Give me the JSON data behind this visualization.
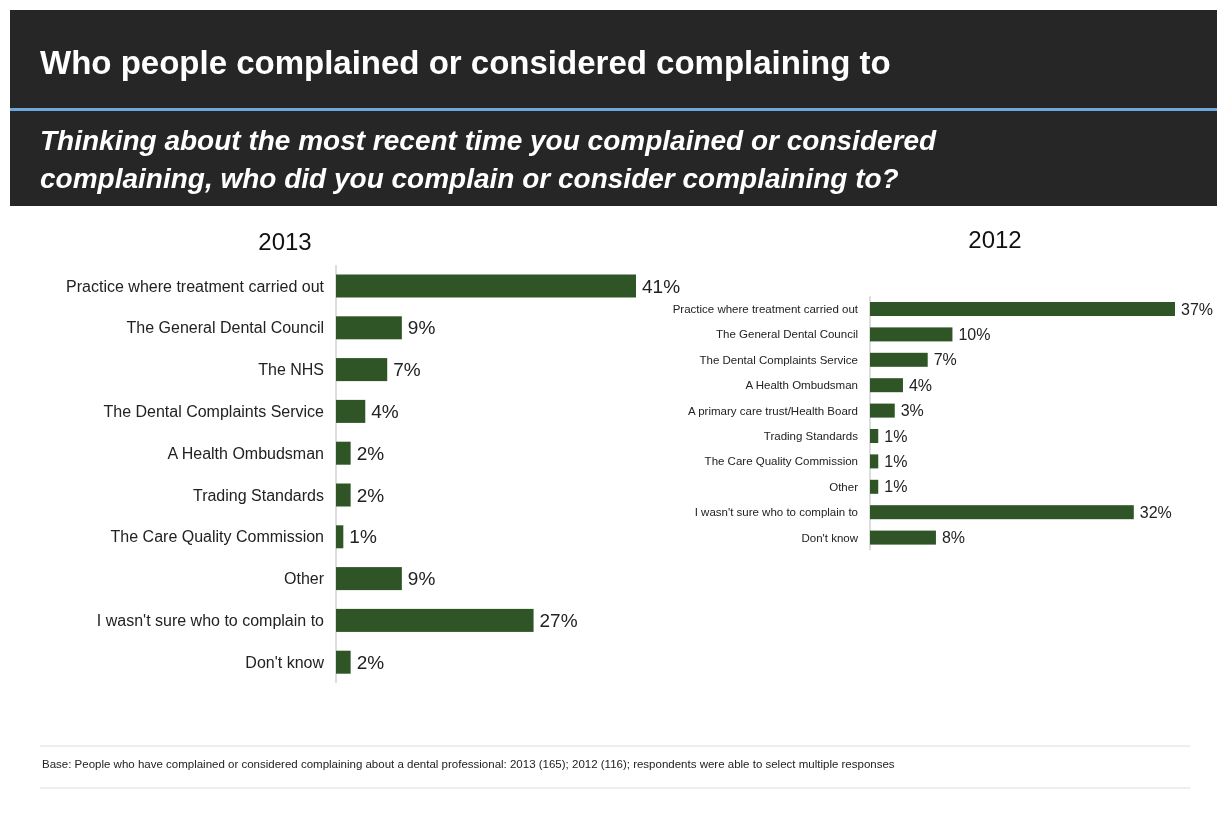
{
  "chart_data": [
    {
      "type": "other",
      "title": "Who people complained or considered complaining to",
      "subtitle": "Thinking about the most recent time you complained or considered complaining, who did you complain or consider complaining to?",
      "annotations": [
        "Base: People who have complained or considered complaining about a dental professional: 2013 (165); 2012 (116); respondents were able to select multiple responses"
      ]
    },
    {
      "type": "bar",
      "orientation": "horizontal",
      "title": "2013",
      "categories": [
        "Practice where treatment carried out",
        "The General Dental Council",
        "The NHS",
        "The Dental Complaints Service",
        "A Health Ombudsman",
        "Trading Standards",
        "The Care Quality Commission",
        "Other",
        "I wasn't sure who to complain to",
        "Don't know"
      ],
      "values": [
        41,
        9,
        7,
        4,
        2,
        2,
        1,
        9,
        27,
        2
      ],
      "value_labels": [
        "41%",
        "9%",
        "7%",
        "4%",
        "2%",
        "2%",
        "1%",
        "9%",
        "27%",
        "2%"
      ],
      "color": "#2f5425"
    },
    {
      "type": "bar",
      "orientation": "horizontal",
      "title": "2012",
      "categories": [
        "Practice where treatment carried out",
        "The General Dental Council",
        "The Dental Complaints Service",
        "A Health Ombudsman",
        "A primary care trust/Health Board",
        "Trading Standards",
        "The Care Quality Commission",
        "Other",
        "I wasn't sure who to complain to",
        "Don't know"
      ],
      "values": [
        37,
        10,
        7,
        4,
        3,
        1,
        1,
        1,
        32,
        8
      ],
      "value_labels": [
        "37%",
        "10%",
        "7%",
        "4%",
        "3%",
        "1%",
        "1%",
        "1%",
        "32%",
        "8%"
      ],
      "color": "#2f5425"
    }
  ]
}
